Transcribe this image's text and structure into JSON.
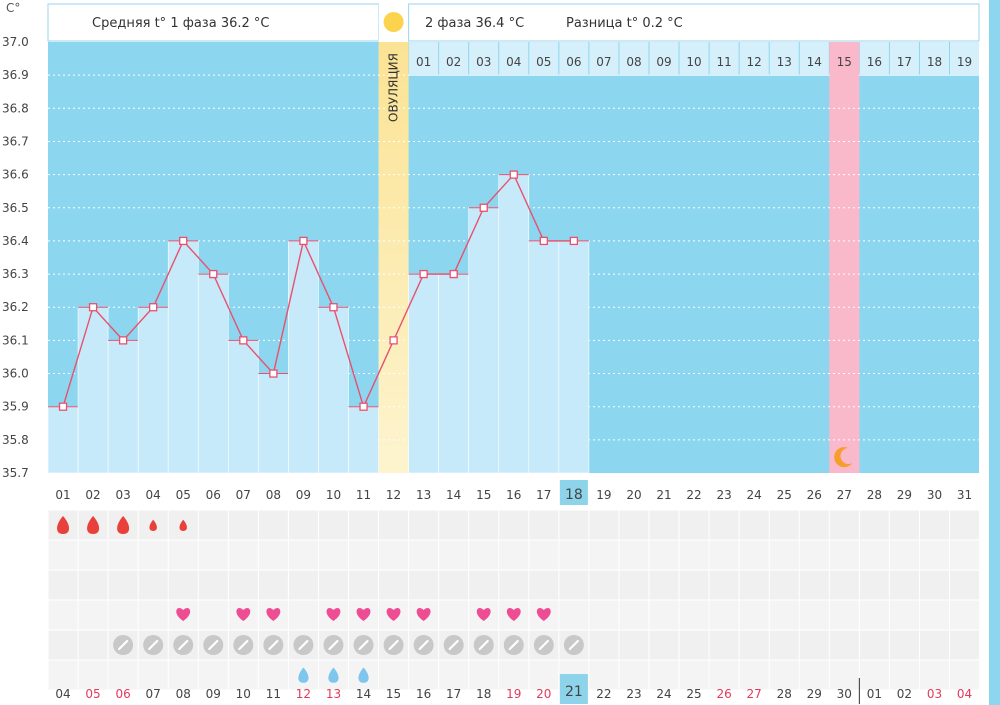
{
  "header": {
    "phase1_text": "Средняя t° 1 фаза 36.2 °C",
    "phase2_text": "2 фаза 36.4 °C",
    "diff_text": "Разница t° 0.2 °C"
  },
  "chart_data": {
    "type": "line",
    "y_unit_label": "C°",
    "ylim": [
      35.7,
      37.0
    ],
    "y_ticks": [
      "37.0",
      "36.9",
      "36.8",
      "36.7",
      "36.6",
      "36.5",
      "36.4",
      "36.3",
      "36.2",
      "36.1",
      "36.0",
      "35.9",
      "35.8",
      "35.7"
    ],
    "x_cycle_days": [
      "01",
      "02",
      "03",
      "04",
      "05",
      "06",
      "07",
      "08",
      "09",
      "10",
      "11",
      "12",
      "13",
      "14",
      "15",
      "16",
      "17",
      "18",
      "19",
      "20",
      "21",
      "22",
      "23",
      "24",
      "25",
      "26",
      "27",
      "28",
      "29",
      "30",
      "31"
    ],
    "current_cycle_day": "18",
    "phase2_days": [
      "01",
      "02",
      "03",
      "04",
      "05",
      "06",
      "07",
      "08",
      "09",
      "10",
      "11",
      "12",
      "13",
      "14",
      "15",
      "16",
      "17",
      "18",
      "19"
    ],
    "ovulation_day": "12",
    "ovulation_label": "ОВУЛЯЦИЯ",
    "expected_period_day": "27",
    "series": [
      {
        "values": [
          35.9,
          36.2,
          36.1,
          36.2,
          36.4,
          36.3,
          36.1,
          36.0,
          36.4,
          36.2,
          35.9,
          36.1,
          36.3,
          36.3,
          36.5,
          36.6,
          36.4,
          36.4
        ]
      }
    ],
    "colors": {
      "background": "#8dd6ef",
      "bar": "#c6eafa",
      "line": "#e8506e",
      "ovulation": "#fbe394",
      "period": "#f9b9cb",
      "header_border": "#9ad6ee",
      "today": "#8dd3ea"
    },
    "grid": true,
    "rows": {
      "bleeding": [
        {
          "day": 1,
          "size": "large"
        },
        {
          "day": 2,
          "size": "large"
        },
        {
          "day": 3,
          "size": "large"
        },
        {
          "day": 4,
          "size": "small"
        },
        {
          "day": 5,
          "size": "small"
        }
      ],
      "intercourse_days": [
        5,
        7,
        8,
        10,
        11,
        12,
        13,
        15,
        16,
        17
      ],
      "pill_days": [
        3,
        4,
        5,
        6,
        7,
        8,
        9,
        10,
        11,
        12,
        13,
        14,
        15,
        16,
        17,
        18
      ],
      "discharge_days": [
        9,
        10,
        11
      ]
    },
    "calendar_dates": [
      "04",
      "05",
      "06",
      "07",
      "08",
      "09",
      "10",
      "11",
      "12",
      "13",
      "14",
      "15",
      "16",
      "17",
      "18",
      "19",
      "20",
      "21",
      "22",
      "23",
      "24",
      "25",
      "26",
      "27",
      "28",
      "29",
      "30",
      "01",
      "02",
      "03",
      "04"
    ],
    "calendar_weekend_indices": [
      1,
      2,
      8,
      9,
      15,
      16,
      22,
      23,
      29,
      30
    ],
    "calendar_today_index": 17,
    "calendar_month_break_index": 27
  }
}
